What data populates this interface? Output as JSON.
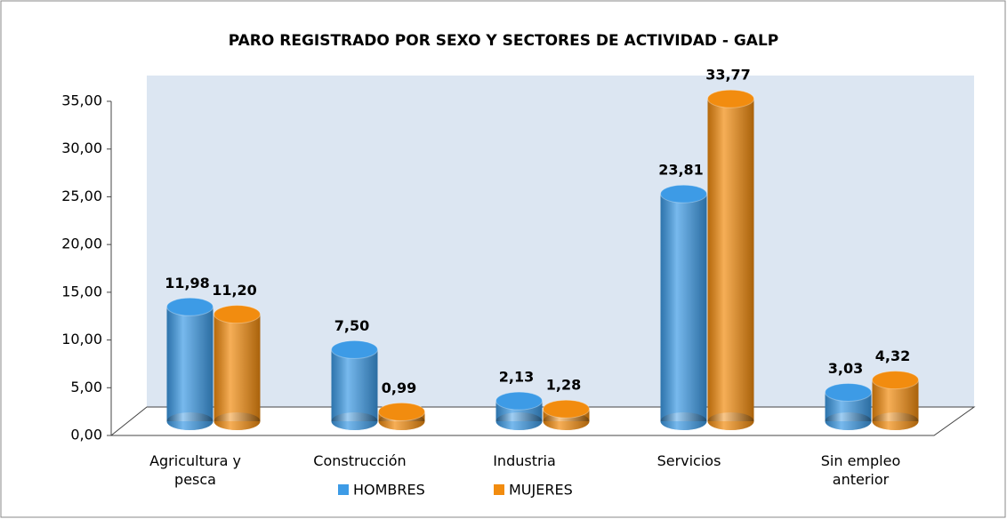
{
  "chart_data": {
    "type": "bar3d",
    "title": "PARO REGISTRADO POR SEXO Y SECTORES DE ACTIVIDAD - GALP",
    "categories": [
      "Agricultura y pesca",
      "Construcción",
      "Industria",
      "Servicios",
      "Sin empleo anterior"
    ],
    "series": [
      {
        "name": "HOMBRES",
        "color": "#3d9be6",
        "values": [
          11.98,
          7.5,
          2.13,
          23.81,
          3.03
        ],
        "value_labels": [
          "11,98",
          "7,50",
          "2,13",
          "23,81",
          "3,03"
        ]
      },
      {
        "name": "MUJERES",
        "color": "#f28c0f",
        "values": [
          11.2,
          0.99,
          1.28,
          33.77,
          4.32
        ],
        "value_labels": [
          "11,20",
          "0,99",
          "1,28",
          "33,77",
          "4,32"
        ]
      }
    ],
    "ylim": [
      0,
      35
    ],
    "yticks": [
      {
        "value": 0,
        "label": "0,00"
      },
      {
        "value": 5,
        "label": "5,00"
      },
      {
        "value": 10,
        "label": "10,00"
      },
      {
        "value": 15,
        "label": "15,00"
      },
      {
        "value": 20,
        "label": "20,00"
      },
      {
        "value": 25,
        "label": "25,00"
      },
      {
        "value": 30,
        "label": "30,00"
      },
      {
        "value": 35,
        "label": "35,00"
      }
    ],
    "legend": "bottom"
  }
}
